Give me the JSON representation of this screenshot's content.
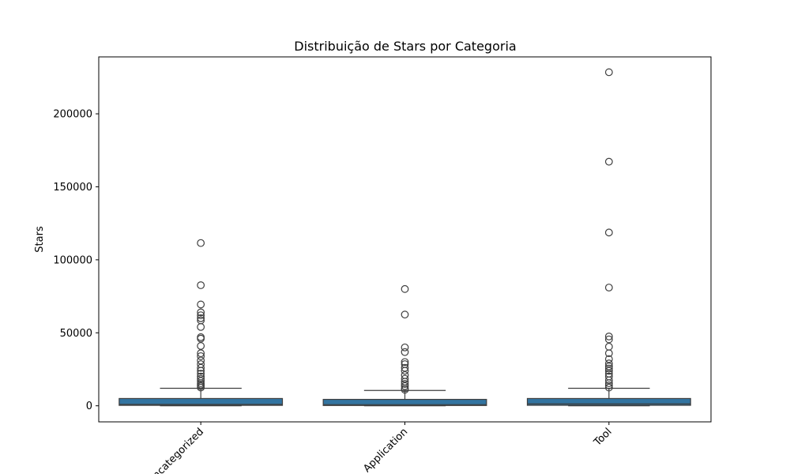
{
  "chart_data": {
    "type": "box",
    "title": "Distribuição de Stars por Categoria",
    "xlabel": "",
    "ylabel": "Stars",
    "ylim": [
      -11000,
      239000
    ],
    "yticks": [
      0,
      50000,
      100000,
      150000,
      200000
    ],
    "ytick_labels": [
      "0",
      "50000",
      "100000",
      "150000",
      "200000"
    ],
    "categories": [
      "Uncategorized",
      "Application",
      "Tool"
    ],
    "box_color": "#3274a1",
    "line_color": "#3f3f3f",
    "grid": false,
    "boxes": [
      {
        "category": "Uncategorized",
        "min": 0,
        "q1": 300,
        "median": 1000,
        "q3": 5000,
        "max": 12000,
        "outliers": [
          111500,
          82600,
          69400,
          64000,
          62000,
          60000,
          58500,
          54000,
          47000,
          46000,
          41000,
          36000,
          34000,
          31000,
          28500,
          26000,
          24000,
          22000,
          20000,
          18500,
          17000,
          15500,
          14500,
          13500,
          12500
        ]
      },
      {
        "category": "Application",
        "min": 0,
        "q1": 200,
        "median": 800,
        "q3": 4400,
        "max": 10500,
        "outliers": [
          80000,
          62500,
          40000,
          36800,
          30000,
          28500,
          26000,
          24000,
          21000,
          18500,
          16500,
          15000,
          13500,
          12000,
          11000
        ]
      },
      {
        "category": "Tool",
        "min": 0,
        "q1": 350,
        "median": 1300,
        "q3": 5000,
        "max": 12000,
        "outliers": [
          228500,
          167200,
          118700,
          81000,
          47500,
          45500,
          40500,
          36000,
          32000,
          29000,
          27000,
          25500,
          24000,
          22000,
          20000,
          17500,
          15500,
          14000,
          12500
        ]
      }
    ]
  }
}
